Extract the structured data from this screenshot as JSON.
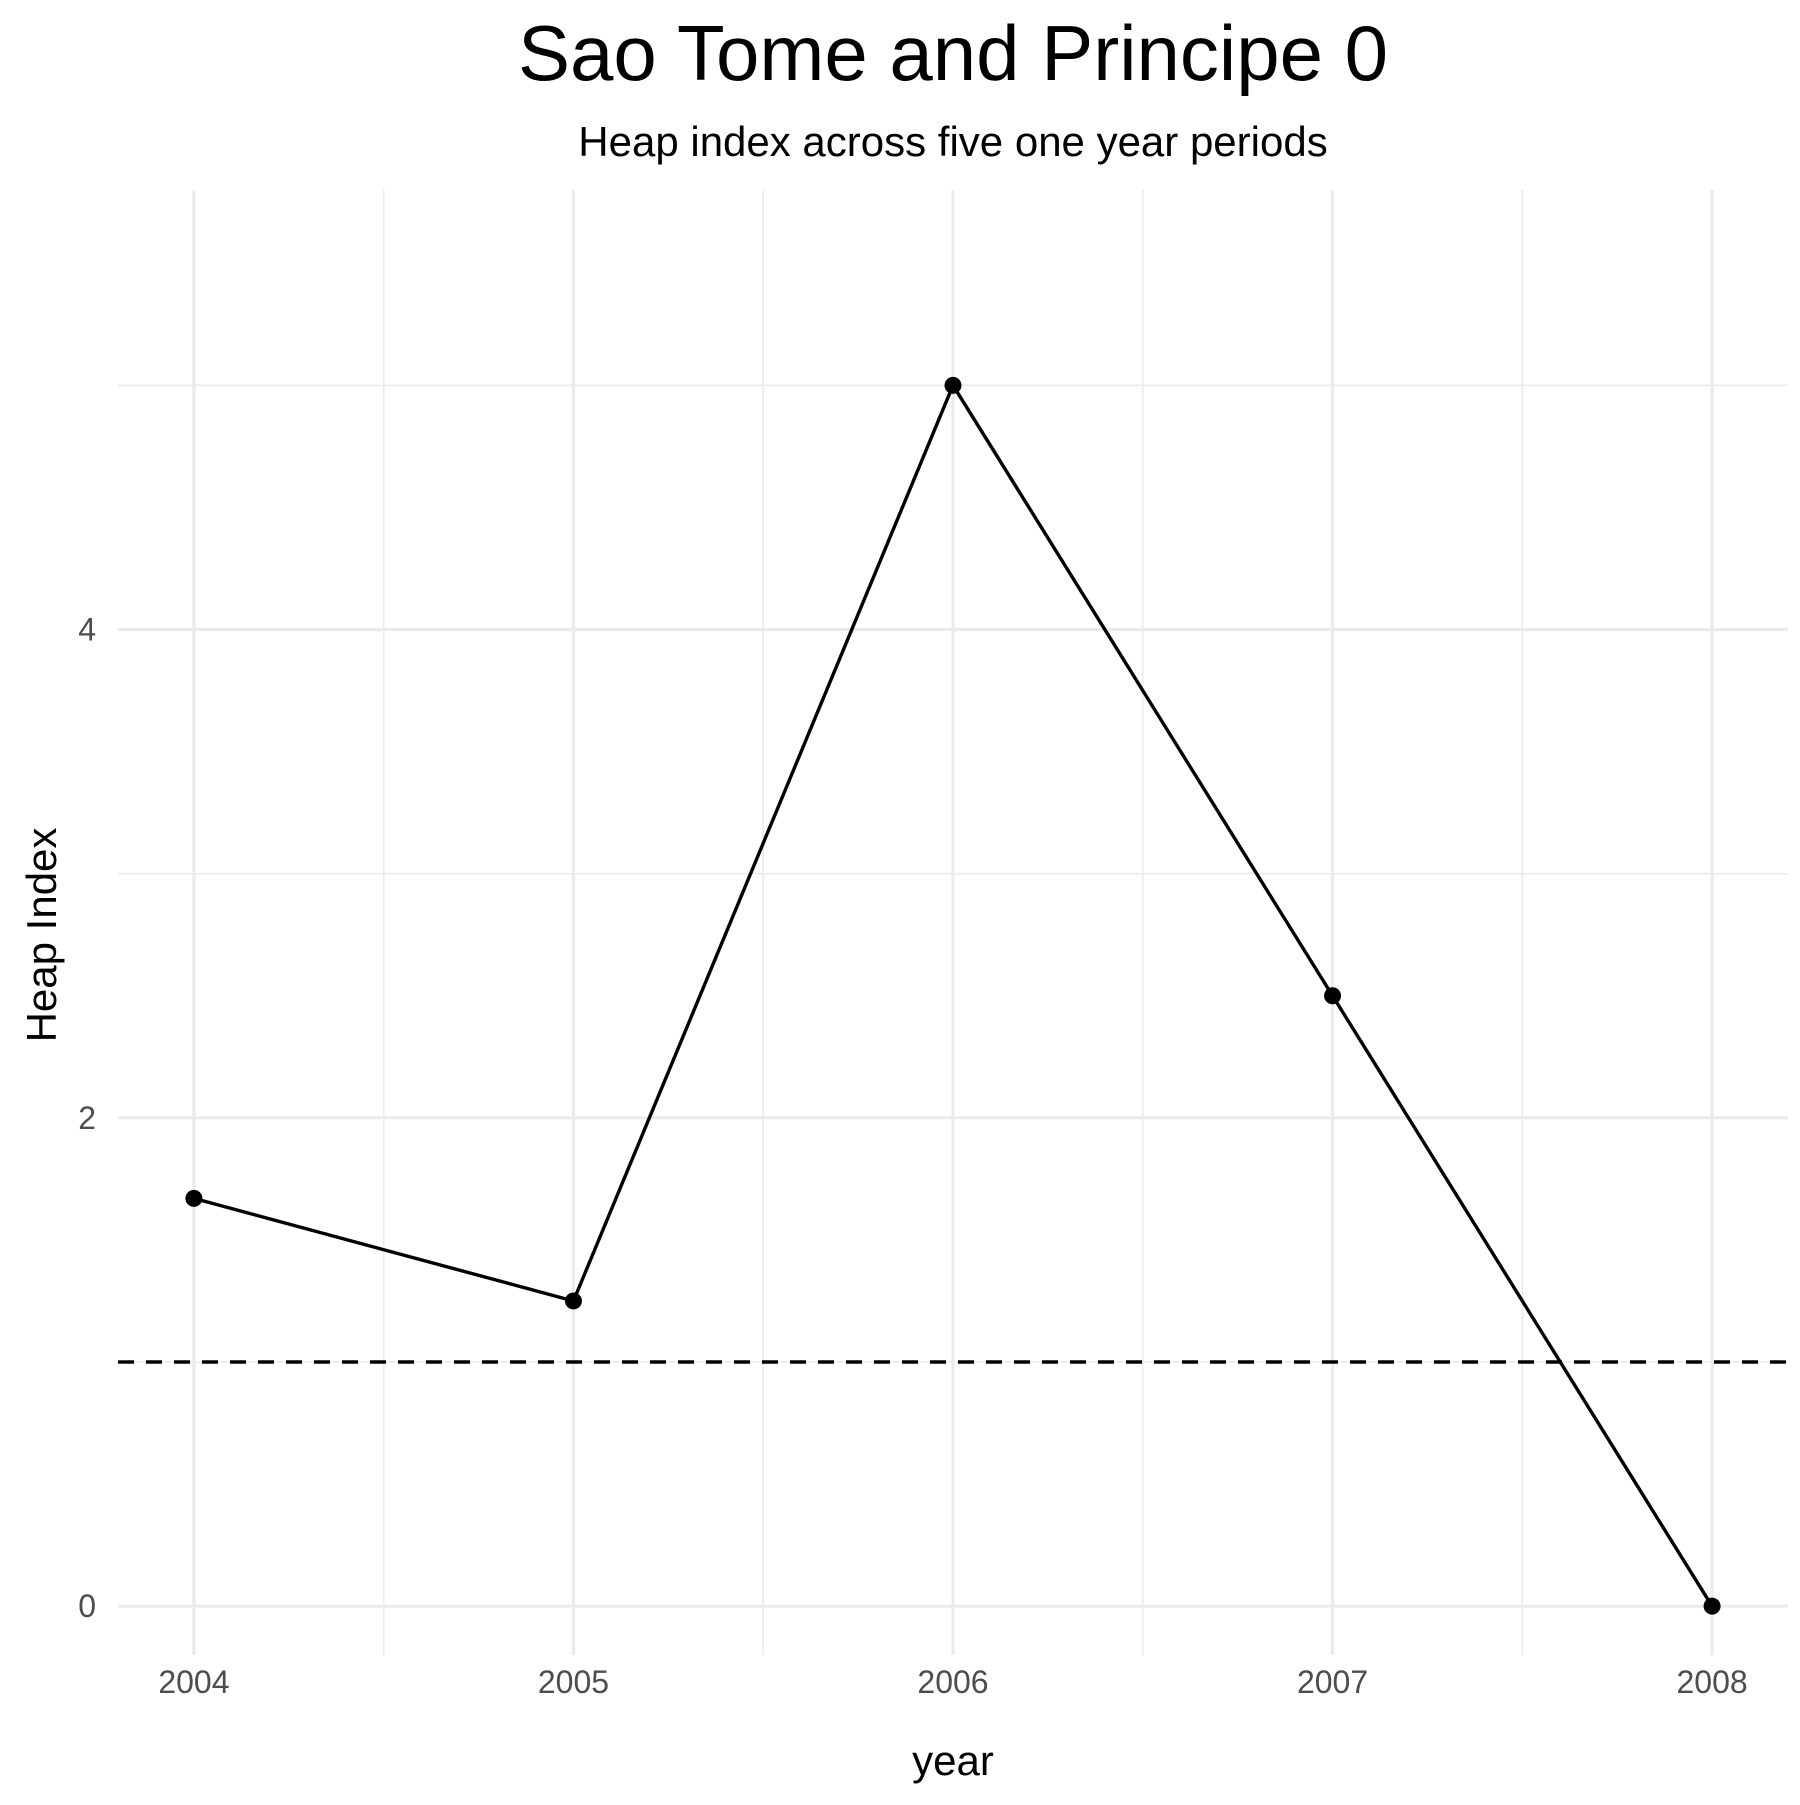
{
  "chart_data": {
    "type": "line",
    "title": "Sao Tome and Principe 0",
    "subtitle": "Heap index across five one year periods",
    "xlabel": "year",
    "ylabel": "Heap Index",
    "x": [
      2004,
      2005,
      2006,
      2007,
      2008
    ],
    "x_tick_labels": [
      "2004",
      "2005",
      "2006",
      "2007",
      "2008"
    ],
    "y_ticks": [
      0,
      2,
      4
    ],
    "y_tick_labels": [
      "0",
      "2",
      "4"
    ],
    "xlim": [
      2003.8,
      2008.2
    ],
    "ylim": [
      -0.2,
      5.8
    ],
    "series": [
      {
        "values": [
          1.67,
          1.25,
          5.0,
          2.5,
          0.0
        ],
        "color": "#000000"
      }
    ],
    "reference_line": {
      "y": 1.0,
      "style": "dashed",
      "color": "#000000"
    },
    "grid": true,
    "legend": "none"
  }
}
